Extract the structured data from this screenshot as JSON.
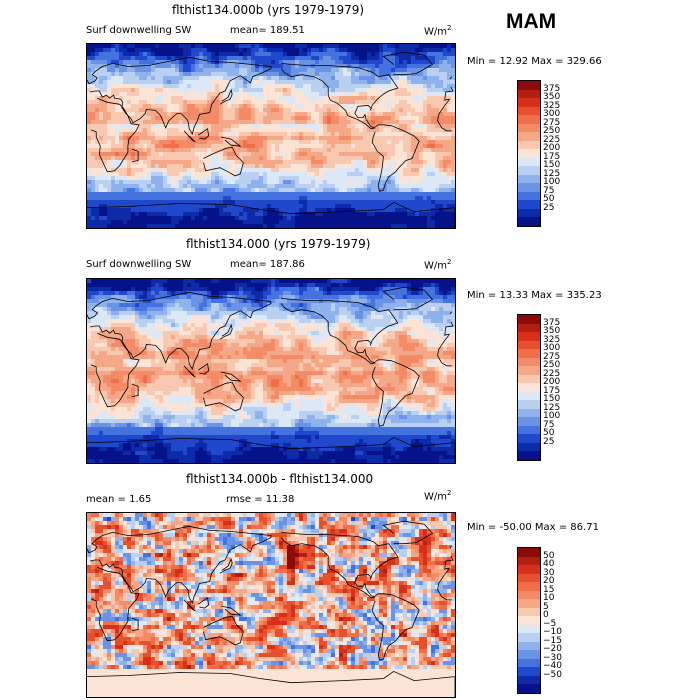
{
  "season": "MAM",
  "chart_data": [
    {
      "type": "heatmap",
      "title": "flthist134.000b (yrs 1979-1979)",
      "variable": "Surf downwelling SW",
      "stat_text": "mean= 189.51",
      "mean": 189.51,
      "units_base": "W/m",
      "units_exp": "2",
      "minmax_text": "Min =  12.92 Max = 329.66",
      "min": 12.92,
      "max": 329.66,
      "color_levels": [
        "375",
        "350",
        "325",
        "300",
        "275",
        "250",
        "225",
        "200",
        "175",
        "150",
        "125",
        "100",
        "75",
        "50",
        "25"
      ],
      "colors": [
        "#8c0a0a",
        "#b3200f",
        "#d6301a",
        "#e6502d",
        "#f06e48",
        "#f28b66",
        "#f5a888",
        "#f9c8b0",
        "#fbe4d6",
        "#dde8f6",
        "#b9d0f0",
        "#8fb2ec",
        "#6a93e6",
        "#4473df",
        "#1f48cc",
        "#0d2aa8",
        "#06128a"
      ],
      "field": "solar"
    },
    {
      "type": "heatmap",
      "title": "flthist134.000 (yrs 1979-1979)",
      "variable": "Surf downwelling SW",
      "stat_text": "mean= 187.86",
      "mean": 187.86,
      "units_base": "W/m",
      "units_exp": "2",
      "minmax_text": "Min =  13.33 Max = 335.23",
      "min": 13.33,
      "max": 335.23,
      "color_levels": [
        "375",
        "350",
        "325",
        "300",
        "275",
        "250",
        "225",
        "200",
        "175",
        "150",
        "125",
        "100",
        "75",
        "50",
        "25"
      ],
      "colors": [
        "#8c0a0a",
        "#b3200f",
        "#d6301a",
        "#e6502d",
        "#f06e48",
        "#f28b66",
        "#f5a888",
        "#f9c8b0",
        "#fbe4d6",
        "#dde8f6",
        "#b9d0f0",
        "#8fb2ec",
        "#6a93e6",
        "#4473df",
        "#1f48cc",
        "#0d2aa8",
        "#06128a"
      ],
      "field": "solar"
    },
    {
      "type": "heatmap",
      "title": "flthist134.000b - flthist134.000",
      "stat_text": "mean =    1.65",
      "stat2_text": "rmse =   11.38",
      "mean": 1.65,
      "rmse": 11.38,
      "units_base": "W/m",
      "units_exp": "2",
      "minmax_text": "Min = -50.00 Max =  86.71",
      "min": -50.0,
      "max": 86.71,
      "color_levels": [
        "50",
        "40",
        "30",
        "20",
        "15",
        "10",
        "5",
        "0",
        "−5",
        "−10",
        "−15",
        "−20",
        "−30",
        "−40",
        "−50"
      ],
      "colors": [
        "#8c0a0a",
        "#b3200f",
        "#d6301a",
        "#e6502d",
        "#f06e48",
        "#f28b66",
        "#f5a888",
        "#f9c8b0",
        "#fbe4d6",
        "#dde8f6",
        "#b9d0f0",
        "#8fb2ec",
        "#6a93e6",
        "#4473df",
        "#1f48cc",
        "#0d2aa8",
        "#06128a"
      ],
      "field": "diff"
    }
  ]
}
